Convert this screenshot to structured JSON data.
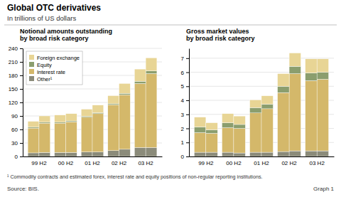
{
  "title": "Global OTC derivatives",
  "subtitle": "In trillions of US dollars",
  "annotations": [
    "¹ Commodity contracts and estimated forex, interest rate and equity positions of non-regular reporting institutions.",
    "Source: BIS.",
    "Graph 1"
  ],
  "chart_data": [
    {
      "type": "bar",
      "stacked": true,
      "grid": true,
      "legend": "upper left",
      "title": "Notional amounts outstanding\nby broad risk category",
      "categories": [
        "99 H2",
        null,
        "00 H2",
        null,
        "01 H2",
        null,
        "02 H2",
        null,
        "03 H2",
        null
      ],
      "series": [
        {
          "name": "Other¹",
          "color": "#8B8B7A",
          "values": [
            8,
            9,
            9,
            9,
            10,
            10,
            13,
            16,
            20,
            20
          ]
        },
        {
          "name": "Interest rate",
          "color": "#D4B86A",
          "values": [
            55,
            65,
            65,
            68,
            77,
            85,
            102,
            121,
            142,
            164
          ]
        },
        {
          "name": "Equity",
          "color": "#8B9E6E",
          "values": [
            2,
            2,
            2,
            2,
            2,
            2,
            2,
            3,
            5,
            6
          ]
        },
        {
          "name": "Foreign exchange",
          "color": "#E8D595",
          "values": [
            13,
            14,
            16,
            16,
            16,
            17,
            18,
            22,
            27,
            29
          ]
        }
      ],
      "ylim": [
        0,
        240
      ],
      "yticks": [
        0,
        30,
        60,
        90,
        120,
        150,
        180,
        210,
        240
      ]
    },
    {
      "type": "bar",
      "stacked": true,
      "grid": true,
      "title": "Gross market values\nby broad risk category",
      "categories": [
        "99 H2",
        null,
        "00 H2",
        null,
        "01 H2",
        null,
        "02 H2",
        null,
        "03 H2",
        null
      ],
      "series": [
        {
          "name": "Other¹",
          "color": "#8B8B7A",
          "values": [
            0.3,
            0.3,
            0.3,
            0.25,
            0.3,
            0.3,
            0.35,
            0.4,
            0.4,
            0.4
          ]
        },
        {
          "name": "Interest rate",
          "color": "#D4B86A",
          "values": [
            1.4,
            1.35,
            1.75,
            1.75,
            2.8,
            3.1,
            4.2,
            5.5,
            5.0,
            5.1
          ]
        },
        {
          "name": "Equity",
          "color": "#8B9E6E",
          "values": [
            0.4,
            0.25,
            0.35,
            0.28,
            0.38,
            0.32,
            0.45,
            0.52,
            0.55,
            0.5
          ]
        },
        {
          "name": "Foreign exchange",
          "color": "#E8D595",
          "values": [
            0.7,
            0.5,
            0.65,
            0.6,
            0.55,
            0.6,
            0.9,
            0.95,
            1.0,
            0.95
          ]
        }
      ],
      "ylim": [
        0,
        7.7
      ],
      "yticks": [
        0,
        1,
        2,
        3,
        4,
        5,
        6,
        7
      ]
    }
  ]
}
